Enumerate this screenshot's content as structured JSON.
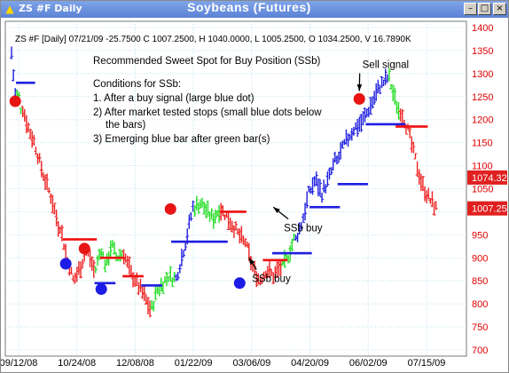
{
  "window": {
    "title": "ZS #F Daily",
    "app_title": "Soybeans (Futures)",
    "icon": "chart-icon",
    "controls": {
      "minimize": "–",
      "maximize": "□",
      "close": "×"
    }
  },
  "chart_data": {
    "type": "ohlc",
    "header": "ZS #F [Daily] 07/21/09  -25.7500 C 1007.2500, H 1040.0000, L 1005.2500, O 1034.2500, V 16.7890K",
    "title": "Recommended Sweet Spot for Buy Position (SSb)",
    "conditions": [
      "Conditions for SSb:",
      "1. After a buy signal (large blue dot)",
      "2) After market tested stops (small blue dots below",
      "the bars)",
      "3) Emerging blue bar after green bar(s)"
    ],
    "ylim": [
      700,
      1400
    ],
    "yticks": [
      700,
      750,
      800,
      850,
      900,
      950,
      1000,
      1050,
      1100,
      1150,
      1200,
      1250,
      1300,
      1350,
      1400
    ],
    "xticks": [
      "09/12/08",
      "10/24/08",
      "12/08/08",
      "01/22/09",
      "03/06/09",
      "04/20/09",
      "06/02/09",
      "07/15/09"
    ],
    "price_labels": [
      {
        "value": 1074.32,
        "text": "1074.32"
      },
      {
        "value": 1007.25,
        "text": "1007.25"
      }
    ],
    "grid": true,
    "bar_colors": {
      "up": "#1f1fe0",
      "transition": "#22dd22",
      "down": "#ee2222"
    },
    "segments": [
      {
        "from": 0,
        "to": 3,
        "color": "blue",
        "prices": [
          1345,
          1315,
          1280,
          1255
        ]
      },
      {
        "from": 3,
        "to": 6,
        "color": "green",
        "prices": [
          1255,
          1260,
          1238,
          1225
        ]
      },
      {
        "from": 6,
        "to": 26,
        "color": "red",
        "prices": [
          1225,
          1180,
          1150,
          1100,
          1060,
          1025,
          970
        ]
      },
      {
        "from": 26,
        "to": 45,
        "color": "red",
        "prices": [
          970,
          900,
          850,
          880,
          920,
          875
        ]
      },
      {
        "from": 45,
        "to": 60,
        "color": "green",
        "prices": [
          875,
          920,
          880,
          930,
          900,
          910
        ]
      },
      {
        "from": 60,
        "to": 75,
        "color": "red",
        "prices": [
          910,
          870,
          845,
          820,
          790
        ]
      },
      {
        "from": 75,
        "to": 88,
        "color": "green",
        "prices": [
          790,
          830,
          845,
          860,
          855
        ]
      },
      {
        "from": 88,
        "to": 98,
        "color": "blue",
        "prices": [
          855,
          900,
          950,
          1010
        ]
      },
      {
        "from": 98,
        "to": 112,
        "color": "green",
        "prices": [
          1010,
          1020,
          1000,
          985,
          1005
        ]
      },
      {
        "from": 112,
        "to": 125,
        "color": "red",
        "prices": [
          1005,
          985,
          960,
          935
        ]
      },
      {
        "from": 125,
        "to": 145,
        "color": "red",
        "prices": [
          935,
          880,
          850,
          875,
          860,
          880
        ]
      },
      {
        "from": 145,
        "to": 152,
        "color": "green",
        "prices": [
          880,
          905,
          940
        ]
      },
      {
        "from": 152,
        "to": 174,
        "color": "blue",
        "prices": [
          940,
          980,
          1040,
          1070,
          1040,
          1070,
          1110
        ]
      },
      {
        "from": 174,
        "to": 202,
        "color": "blue",
        "prices": [
          1110,
          1150,
          1180,
          1195,
          1230,
          1270,
          1290
        ]
      },
      {
        "from": 202,
        "to": 208,
        "color": "green",
        "prices": [
          1290,
          1250,
          1220
        ]
      },
      {
        "from": 208,
        "to": 228,
        "color": "red",
        "prices": [
          1220,
          1180,
          1120,
          1060,
          1030,
          1007
        ]
      }
    ],
    "stops": [
      {
        "color": "blue",
        "start": 3,
        "end": 12,
        "value": 1280
      },
      {
        "color": "red",
        "start": 28,
        "end": 45,
        "value": 940
      },
      {
        "color": "blue",
        "start": 45,
        "end": 55,
        "value": 845
      },
      {
        "color": "red",
        "start": 48,
        "end": 60,
        "value": 900
      },
      {
        "color": "red",
        "start": 60,
        "end": 70,
        "value": 860
      },
      {
        "color": "blue",
        "start": 70,
        "end": 80,
        "value": 840
      },
      {
        "color": "blue",
        "start": 86,
        "end": 115,
        "value": 935
      },
      {
        "color": "red",
        "start": 112,
        "end": 125,
        "value": 1000
      },
      {
        "color": "red",
        "start": 135,
        "end": 147,
        "value": 895
      },
      {
        "color": "blue",
        "start": 140,
        "end": 160,
        "value": 910
      },
      {
        "color": "blue",
        "start": 160,
        "end": 175,
        "value": 1010
      },
      {
        "color": "blue",
        "start": 175,
        "end": 190,
        "value": 1060
      },
      {
        "color": "blue",
        "start": 190,
        "end": 210,
        "value": 1190
      },
      {
        "color": "red",
        "start": 206,
        "end": 222,
        "value": 1185
      }
    ],
    "signals": [
      {
        "type": "sell",
        "index": 2,
        "value": 1240
      },
      {
        "type": "sell",
        "index": 39,
        "value": 920
      },
      {
        "type": "buy",
        "index": 29,
        "value": 887
      },
      {
        "type": "buy",
        "index": 48,
        "value": 832
      },
      {
        "type": "sell",
        "index": 85,
        "value": 1006
      },
      {
        "type": "buy",
        "index": 122,
        "value": 845
      },
      {
        "type": "sell",
        "index": 186,
        "value": 1245
      }
    ],
    "annotations": [
      {
        "text": "Sell signal",
        "index": 190,
        "value": 1320,
        "arrow_index": 186,
        "arrow_value": 1262
      },
      {
        "text": "SSb buy",
        "index": 148,
        "value": 965,
        "arrow_index": 140,
        "arrow_value": 1010
      },
      {
        "text": "SSb buy",
        "index": 131,
        "value": 855,
        "arrow_index": 127,
        "arrow_value": 900
      }
    ]
  }
}
